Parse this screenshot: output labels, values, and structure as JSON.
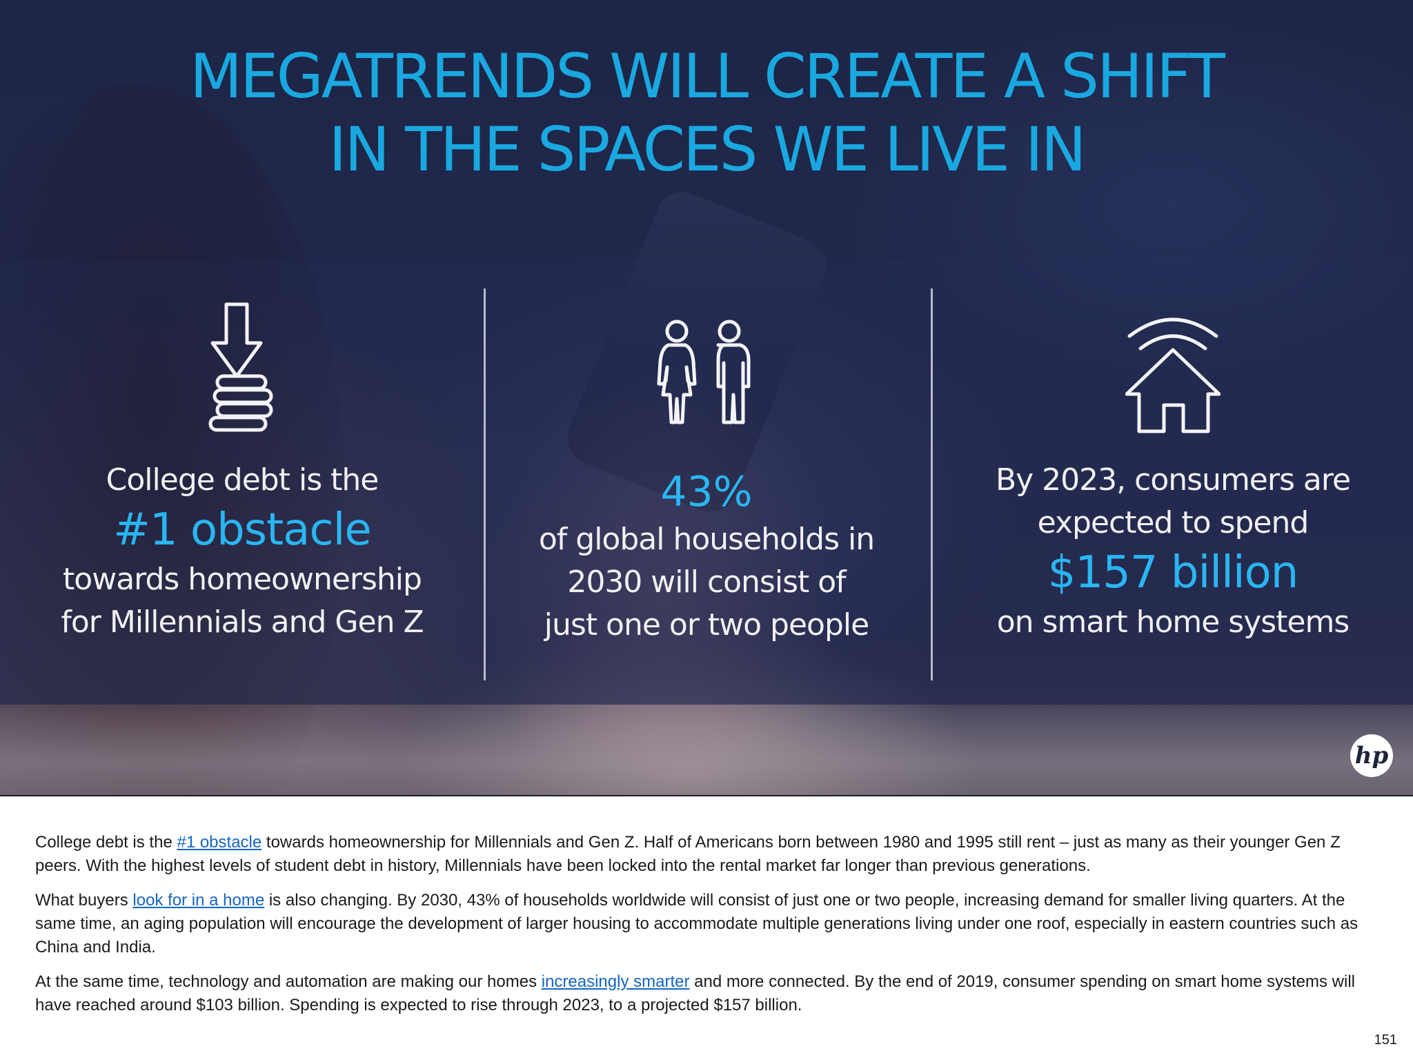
{
  "hero": {
    "title_line1": "MEGATRENDS WILL CREATE A SHIFT",
    "title_line2": "IN THE SPACES WE LIVE IN",
    "accent_color": "#29b6f2",
    "stats": [
      {
        "icon": "coins-down-arrow-icon",
        "line1": "College debt is the",
        "highlight": "#1 obstacle",
        "line2": "towards homeownership",
        "line3": "for Millennials and Gen Z"
      },
      {
        "icon": "two-people-icon",
        "highlight": "43%",
        "line1": "of global households in",
        "line2": "2030 will consist of",
        "line3": "just one or two people"
      },
      {
        "icon": "smart-home-wifi-icon",
        "line1": "By 2023, consumers are",
        "line2": "expected to spend",
        "highlight": "$157 billion",
        "line3": "on smart home systems"
      }
    ],
    "logo_text": "hp"
  },
  "body": {
    "p1": {
      "pre": "College debt is the ",
      "link": "#1 obstacle",
      "post": " towards homeownership for Millennials and Gen Z. Half of Americans born between 1980 and 1995 still rent – just as many as their younger Gen Z peers. With the highest levels of student debt in history, Millennials have been locked into the rental market far longer than previous generations."
    },
    "p2": {
      "pre": "What buyers ",
      "link": "look for in a home",
      "post": " is also changing. By 2030, 43% of households worldwide will consist of just one or two people, increasing demand for smaller living quarters. At the same time, an aging population will encourage the development of larger housing to accommodate multiple generations living under one roof, especially in eastern countries such as China and India."
    },
    "p3": {
      "pre": "At the same time, technology and automation are making our homes ",
      "link": "increasingly smarter",
      "post": " and more connected. By the end of 2019, consumer spending on smart home systems will have reached around $103 billion. Spending is expected to rise through 2023, to a projected $157 billion."
    }
  },
  "page_number": "151"
}
